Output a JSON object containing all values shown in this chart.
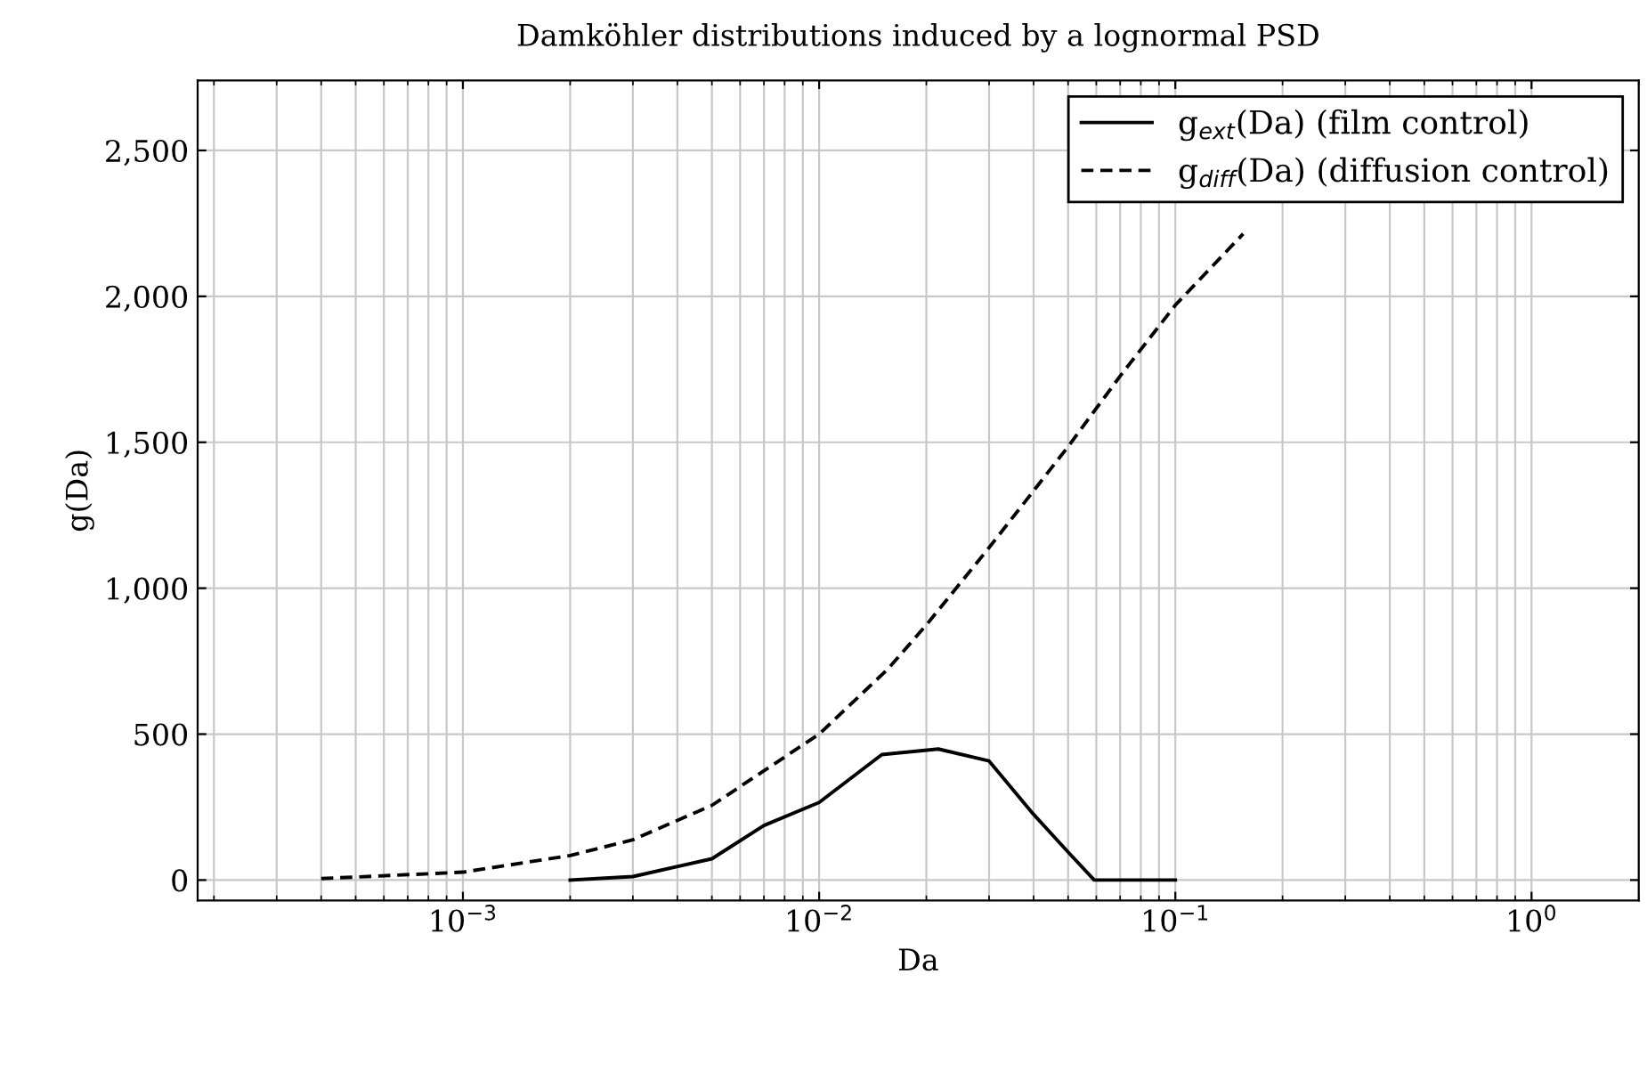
{
  "chart_data": {
    "type": "line",
    "title": "Damköhler distributions induced by a lognormal PSD",
    "xlabel": "Da",
    "ylabel": "g(Da)",
    "log": "x",
    "xlim": [
      0.00018,
      2.0
    ],
    "ylim": [
      -70,
      2740
    ],
    "xticks": [
      {
        "value": 0.001,
        "label": "10$^{−3}$"
      },
      {
        "value": 0.01,
        "label": "10$^{−2}$"
      },
      {
        "value": 0.1,
        "label": "10$^{−1}$"
      },
      {
        "value": 1,
        "label": "10$^{0}$"
      }
    ],
    "yticks": [
      0,
      500,
      {
        "value": 1000,
        "label": "1,000"
      },
      {
        "value": 1500,
        "label": "1,500"
      },
      {
        "value": 2000,
        "label": "2,000"
      },
      {
        "value": 2500,
        "label": "2,500"
      }
    ],
    "grid": true,
    "legend": "top right",
    "series": [
      {
        "name": "g$_{ext}$(Da) (film control)",
        "color": "#000000",
        "line_style": "solid",
        "x": [
          0.002,
          0.003,
          0.005,
          0.007,
          0.01,
          0.015,
          0.0216,
          0.03,
          0.04,
          0.05,
          0.0592,
          0.1
        ],
        "values": [
          0,
          12,
          73,
          187,
          266,
          430,
          449,
          408,
          225,
          96,
          0,
          0
        ]
      },
      {
        "name": "g$_{diff}$(Da) (diffusion control)",
        "color": "#000000",
        "line_style": "dashed",
        "x": [
          0.0004,
          0.001,
          0.002,
          0.003,
          0.005,
          0.01,
          0.0156,
          0.02,
          0.03,
          0.05,
          0.07,
          0.1,
          0.155
        ],
        "values": [
          5,
          27,
          84,
          138,
          256,
          500,
          723,
          874,
          1139,
          1485,
          1727,
          1970,
          2214
        ]
      }
    ]
  }
}
